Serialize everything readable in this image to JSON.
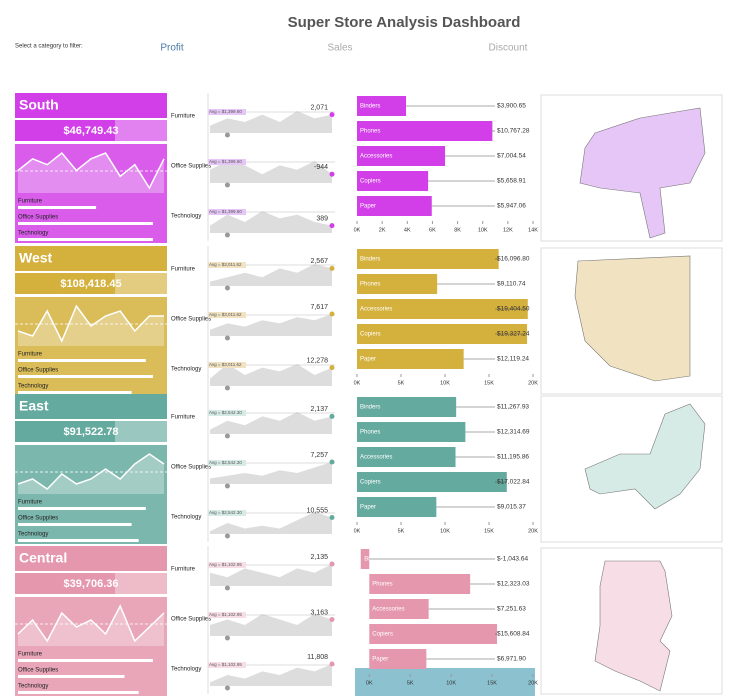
{
  "header": {
    "title": "Super Store Analysis Dashboard",
    "filter_label": "Select a category to filter:",
    "tabs": [
      "Profit",
      "Sales",
      "Discount"
    ]
  },
  "regions": [
    {
      "name": "South",
      "color": "#d23fe8",
      "light": "#e6c6f7",
      "total": "$46,749.43",
      "trend": [
        6,
        8,
        7,
        9,
        6,
        8,
        9,
        5,
        7,
        3,
        8
      ],
      "categories": [
        {
          "name": "Furniture",
          "share": 0.55,
          "avg_label": "Avg = $1,399.60",
          "value_label": "2,071",
          "area": [
            2,
            4,
            3,
            5,
            3,
            6,
            4,
            5
          ]
        },
        {
          "name": "Office Supplies",
          "share": 0.95,
          "avg_label": "Avg = $1,399.60",
          "value_label": "-944",
          "area": [
            3,
            5,
            4,
            2,
            4,
            3,
            5,
            2
          ]
        },
        {
          "name": "Technology",
          "share": 0.95,
          "avg_label": "Avg = $1,399.60",
          "value_label": "389",
          "area": [
            2,
            5,
            3,
            6,
            4,
            5,
            3,
            2
          ]
        }
      ],
      "subcategories": {
        "names": [
          "Binders",
          "Phones",
          "Accessories",
          "Copiers",
          "Paper"
        ],
        "values": [
          3900.65,
          10767.28,
          7004.54,
          5658.91,
          5947.06
        ],
        "value_labels": [
          "$3,900.65",
          "$10,767.28",
          "$7,004.54",
          "$5,658.91",
          "$5,947.06"
        ],
        "xlim": [
          0,
          14000
        ],
        "xticks": [
          {
            "value": 0,
            "label": "0K"
          },
          {
            "value": 2000,
            "label": "2K"
          },
          {
            "value": 4000,
            "label": "4K"
          },
          {
            "value": 6000,
            "label": "6K"
          },
          {
            "value": 8000,
            "label": "8K"
          },
          {
            "value": 10000,
            "label": "10K"
          },
          {
            "value": 12000,
            "label": "12K"
          },
          {
            "value": 14000,
            "label": "14K"
          }
        ]
      }
    },
    {
      "name": "West",
      "color": "#d4b03c",
      "light": "#f1e3c2",
      "total": "$108,418.45",
      "trend": [
        4,
        3,
        8,
        2,
        9,
        5,
        7,
        8,
        4,
        7,
        7
      ],
      "categories": [
        {
          "name": "Furniture",
          "share": 0.9,
          "avg_label": "Avg = $3,011.62",
          "value_label": "2,567",
          "area": [
            1,
            2,
            3,
            2,
            4,
            3,
            5,
            4
          ]
        },
        {
          "name": "Office Supplies",
          "share": 0.95,
          "avg_label": "Avg = $3,011.62",
          "value_label": "7,617",
          "area": [
            2,
            4,
            3,
            5,
            4,
            6,
            5,
            7
          ]
        },
        {
          "name": "Technology",
          "share": 0.8,
          "avg_label": "Avg = $3,011.62",
          "value_label": "12,278",
          "area": [
            2,
            6,
            3,
            5,
            4,
            6,
            3,
            5
          ]
        }
      ],
      "subcategories": {
        "names": [
          "Binders",
          "Phones",
          "Accessories",
          "Copiers",
          "Paper"
        ],
        "values": [
          16096.8,
          9110.74,
          19404.5,
          19327.24,
          12119.24
        ],
        "value_labels": [
          "$16,096.80",
          "$9,110.74",
          "$19,404.50",
          "$19,327.24",
          "$12,119.24"
        ],
        "xlim": [
          0,
          20000
        ],
        "xticks": [
          {
            "value": 0,
            "label": "0K"
          },
          {
            "value": 5000,
            "label": "5K"
          },
          {
            "value": 10000,
            "label": "10K"
          },
          {
            "value": 15000,
            "label": "15K"
          },
          {
            "value": 20000,
            "label": "20K"
          }
        ]
      }
    },
    {
      "name": "East",
      "color": "#65aa9f",
      "light": "#d6ebe6",
      "total": "$91,522.78",
      "trend": [
        3,
        4,
        2,
        5,
        3,
        4,
        6,
        4,
        7,
        9,
        7
      ],
      "categories": [
        {
          "name": "Furniture",
          "share": 0.9,
          "avg_label": "Avg = $2,542.30",
          "value_label": "2,137",
          "area": [
            1,
            3,
            2,
            4,
            3,
            5,
            3,
            4
          ]
        },
        {
          "name": "Office Supplies",
          "share": 0.8,
          "avg_label": "Avg = $2,542.30",
          "value_label": "7,257",
          "area": [
            2,
            3,
            4,
            3,
            5,
            4,
            6,
            8
          ]
        },
        {
          "name": "Technology",
          "share": 0.85,
          "avg_label": "Avg = $2,542.30",
          "value_label": "10,555",
          "area": [
            1,
            4,
            2,
            3,
            2,
            5,
            8,
            6
          ]
        }
      ],
      "subcategories": {
        "names": [
          "Binders",
          "Phones",
          "Accessories",
          "Copiers",
          "Paper"
        ],
        "values": [
          11267.93,
          12314.69,
          11195.86,
          17022.84,
          9015.37
        ],
        "value_labels": [
          "$11,267.93",
          "$12,314.69",
          "$11,195.86",
          "$17,022.84",
          "$9,015.37"
        ],
        "xlim": [
          0,
          20000
        ],
        "xticks": [
          {
            "value": 0,
            "label": "0K"
          },
          {
            "value": 5000,
            "label": "5K"
          },
          {
            "value": 10000,
            "label": "10K"
          },
          {
            "value": 15000,
            "label": "15K"
          },
          {
            "value": 20000,
            "label": "20K"
          }
        ]
      }
    },
    {
      "name": "Central",
      "color": "#e597ad",
      "light": "#f7dde5",
      "total": "$39,706.36",
      "trend": [
        5,
        7,
        4,
        8,
        6,
        7,
        5,
        9,
        4,
        6,
        8
      ],
      "categories": [
        {
          "name": "Furniture",
          "share": 0.95,
          "avg_label": "Avg = $1,102.95",
          "value_label": "2,135",
          "area": [
            3,
            2,
            4,
            3,
            2,
            4,
            3,
            5
          ]
        },
        {
          "name": "Office Supplies",
          "share": 0.75,
          "avg_label": "Avg = $1,102.95",
          "value_label": "3,163",
          "area": [
            2,
            3,
            2,
            4,
            3,
            2,
            4,
            3
          ]
        },
        {
          "name": "Technology",
          "share": 0.85,
          "avg_label": "Avg = $1,102.95",
          "value_label": "11,808",
          "area": [
            1,
            3,
            2,
            4,
            3,
            5,
            4,
            6
          ]
        }
      ],
      "subcategories": {
        "names": [
          "Binders",
          "Phones",
          "Accessories",
          "Copiers",
          "Paper"
        ],
        "values": [
          -1043.64,
          12323.03,
          7251.63,
          15608.84,
          6971.9
        ],
        "value_labels": [
          "$-1,043.64",
          "$12,323.03",
          "$7,251.63",
          "$15,608.84",
          "$6,971.90"
        ],
        "xlim": [
          -1500,
          20000
        ],
        "xticks": [
          {
            "value": 0,
            "label": "0K"
          },
          {
            "value": 5000,
            "label": "5K"
          },
          {
            "value": 10000,
            "label": "10K"
          },
          {
            "value": 15000,
            "label": "15K"
          },
          {
            "value": 20000,
            "label": "20K"
          }
        ]
      }
    }
  ]
}
